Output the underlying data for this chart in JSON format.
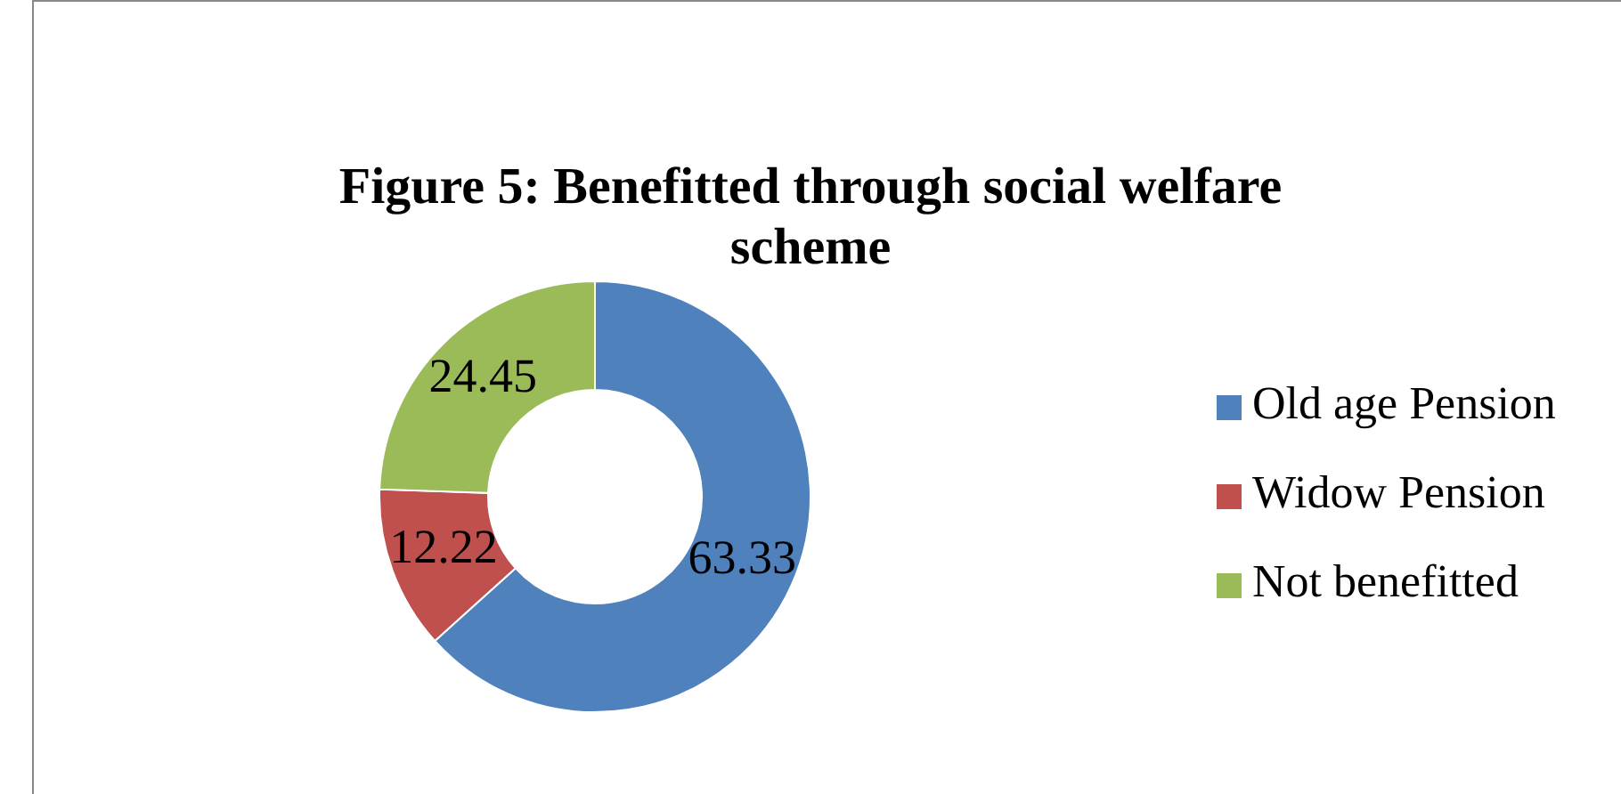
{
  "chart_data": {
    "type": "donut",
    "title": "Figure 5: Benefitted through social welfare scheme",
    "categories": [
      "Old age Pension",
      "Widow Pension",
      "Not benefitted"
    ],
    "values": [
      63.33,
      12.22,
      24.45
    ],
    "colors": [
      "#4f81bd",
      "#c0504d",
      "#9bbb59"
    ],
    "data_labels": true,
    "legend": "right"
  }
}
